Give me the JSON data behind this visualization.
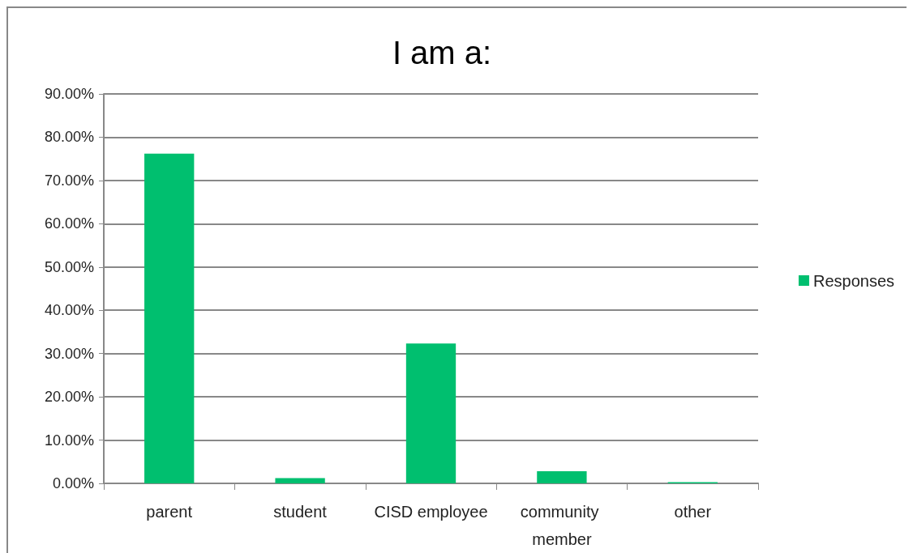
{
  "chart_data": {
    "type": "bar",
    "title": "I am a:",
    "categories": [
      "parent",
      "student",
      "CISD employee",
      "community member",
      "other"
    ],
    "series": [
      {
        "name": "Responses",
        "color": "#00bf6f",
        "values": [
          76.2,
          1.2,
          32.3,
          2.8,
          0.3
        ]
      }
    ],
    "ylim": [
      0,
      90
    ],
    "yticks": [
      {
        "value": 0,
        "label": "0.00%"
      },
      {
        "value": 10,
        "label": "10.00%"
      },
      {
        "value": 20,
        "label": "20.00%"
      },
      {
        "value": 30,
        "label": "30.00%"
      },
      {
        "value": 40,
        "label": "40.00%"
      },
      {
        "value": 50,
        "label": "50.00%"
      },
      {
        "value": 60,
        "label": "60.00%"
      },
      {
        "value": 70,
        "label": "70.00%"
      },
      {
        "value": 80,
        "label": "80.00%"
      },
      {
        "value": 90,
        "label": "90.00%"
      }
    ],
    "grid": "y",
    "legend": "right"
  }
}
